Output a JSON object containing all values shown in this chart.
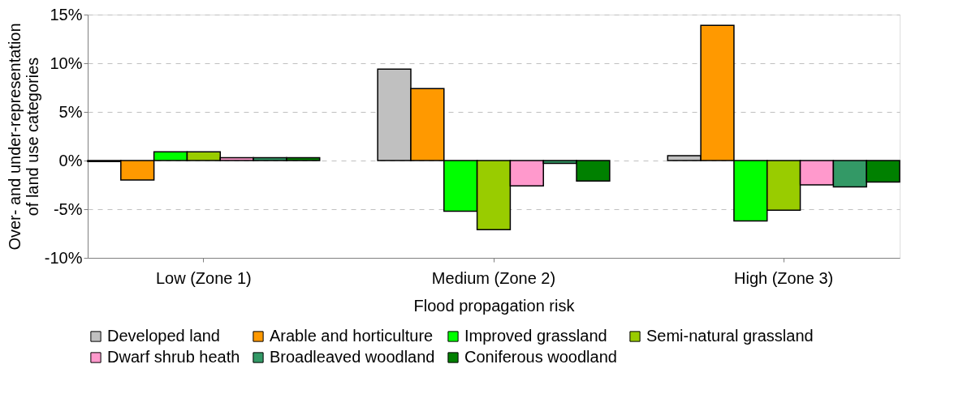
{
  "chart_data": {
    "type": "bar",
    "xlabel": "Flood propagation risk",
    "ylabel": "Over- and under-representation of land use categories",
    "categories": [
      "Low (Zone 1)",
      "Medium (Zone 2)",
      "High (Zone 3)"
    ],
    "series": [
      {
        "name": "Developed land",
        "color": "#c0c0c0",
        "values": [
          -0.1,
          9.4,
          0.5
        ]
      },
      {
        "name": "Arable and horticulture",
        "color": "#ff9900",
        "values": [
          -2.0,
          7.4,
          13.9
        ]
      },
      {
        "name": "Improved grassland",
        "color": "#00ff00",
        "values": [
          0.9,
          -5.2,
          -6.2
        ]
      },
      {
        "name": "Semi-natural grassland",
        "color": "#99cc00",
        "values": [
          0.9,
          -7.1,
          -5.1
        ]
      },
      {
        "name": "Dwarf shrub heath",
        "color": "#ff99cc",
        "values": [
          0.3,
          -2.6,
          -2.5
        ]
      },
      {
        "name": "Broadleaved woodland",
        "color": "#339966",
        "values": [
          0.3,
          -0.3,
          -2.7
        ]
      },
      {
        "name": "Coniferous woodland",
        "color": "#008000",
        "values": [
          0.3,
          -2.1,
          -2.2
        ]
      }
    ],
    "ylim": [
      -10,
      15
    ],
    "yticks": [
      {
        "value": -10,
        "label": "-10%"
      },
      {
        "value": -5,
        "label": "-5%"
      },
      {
        "value": 0,
        "label": "0%"
      },
      {
        "value": 5,
        "label": "5%"
      },
      {
        "value": 10,
        "label": "10%"
      },
      {
        "value": 15,
        "label": "15%"
      }
    ],
    "grid": "y",
    "legend": "bottom"
  }
}
